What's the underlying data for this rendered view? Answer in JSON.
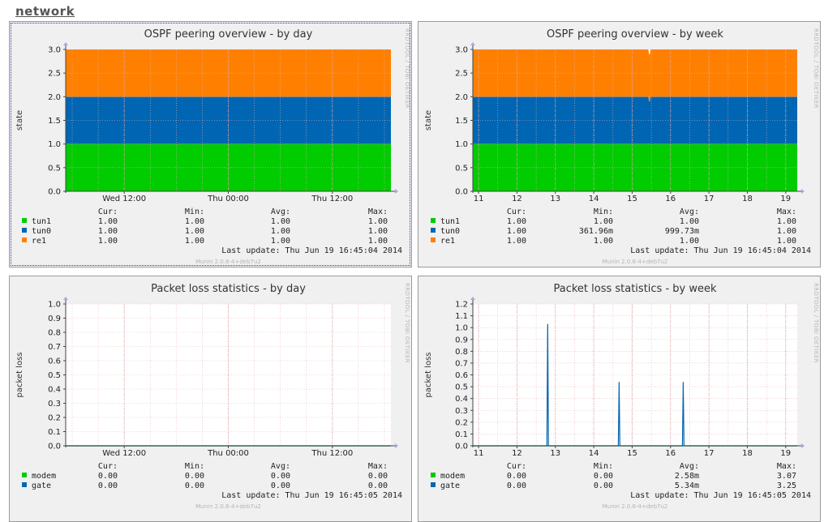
{
  "page": {
    "section_title": "network"
  },
  "chart_data": [
    {
      "id": "ospf-day",
      "type": "area",
      "title": "OSPF peering overview - by day",
      "ylabel": "state",
      "ylim": [
        0,
        3
      ],
      "yticks": [
        "0.0",
        "0.5",
        "1.0",
        "1.5",
        "2.0",
        "2.5",
        "3.0"
      ],
      "xlim": [
        0,
        100
      ],
      "xticks": [
        {
          "x": 18,
          "label": "Wed 12:00"
        },
        {
          "x": 50,
          "label": "Thu 00:00"
        },
        {
          "x": 82,
          "label": "Thu 12:00"
        }
      ],
      "xgrid": [
        2,
        10,
        18,
        26,
        34,
        42,
        50,
        58,
        66,
        74,
        82,
        90,
        98
      ],
      "ygrid": [
        0.5,
        1.0,
        1.5,
        2.0,
        2.5,
        3.0
      ],
      "stacked": true,
      "series": [
        {
          "name": "tun1",
          "color": "#00cc00",
          "x": [
            0,
            100
          ],
          "values": [
            1,
            1
          ]
        },
        {
          "name": "tun0",
          "color": "#0066b3",
          "x": [
            0,
            100
          ],
          "values": [
            1,
            1
          ]
        },
        {
          "name": "re1",
          "color": "#ff8000",
          "x": [
            0,
            100
          ],
          "values": [
            1,
            1
          ]
        }
      ],
      "legend_headers": [
        "Cur:",
        "Min:",
        "Avg:",
        "Max:"
      ],
      "legend_rows": [
        {
          "name": "tun1",
          "color": "#00cc00",
          "cur": "1.00",
          "min": "1.00",
          "avg": "1.00",
          "max": "1.00"
        },
        {
          "name": "tun0",
          "color": "#0066b3",
          "cur": "1.00",
          "min": "1.00",
          "avg": "1.00",
          "max": "1.00"
        },
        {
          "name": "re1",
          "color": "#ff8000",
          "cur": "1.00",
          "min": "1.00",
          "avg": "1.00",
          "max": "1.00"
        }
      ],
      "last_update": "Last update:  Thu Jun 19 16:45:04 2014",
      "side_text": "RRDTOOL / TOBI OETIKER",
      "version": "Munin 2.0.6-4+deb7u2",
      "selected": true
    },
    {
      "id": "ospf-week",
      "type": "area",
      "title": "OSPF peering overview - by week",
      "ylabel": "state",
      "ylim": [
        0,
        3
      ],
      "yticks": [
        "0.0",
        "0.5",
        "1.0",
        "1.5",
        "2.0",
        "2.5",
        "3.0"
      ],
      "xlim": [
        10.85,
        19.3
      ],
      "xticks": [
        {
          "x": 11,
          "label": "11"
        },
        {
          "x": 12,
          "label": "12"
        },
        {
          "x": 13,
          "label": "13"
        },
        {
          "x": 14,
          "label": "14"
        },
        {
          "x": 15,
          "label": "15"
        },
        {
          "x": 16,
          "label": "16"
        },
        {
          "x": 17,
          "label": "17"
        },
        {
          "x": 18,
          "label": "18"
        },
        {
          "x": 19,
          "label": "19"
        }
      ],
      "xgrid": [
        11,
        11.5,
        12,
        12.5,
        13,
        13.5,
        14,
        14.5,
        15,
        15.5,
        16,
        16.5,
        17,
        17.5,
        18,
        18.5,
        19
      ],
      "ygrid": [
        0.5,
        1.0,
        1.5,
        2.0,
        2.5,
        3.0
      ],
      "stacked": true,
      "series": [
        {
          "name": "tun1",
          "color": "#00cc00",
          "x": [
            10.85,
            19.3
          ],
          "values": [
            1,
            1
          ]
        },
        {
          "name": "tun0",
          "color": "#0066b3",
          "x": [
            10.85,
            15.42,
            15.44,
            15.46,
            15.48,
            19.3
          ],
          "values": [
            1,
            1,
            0.9,
            0.9,
            1,
            1
          ]
        },
        {
          "name": "re1",
          "color": "#ff8000",
          "x": [
            10.85,
            19.3
          ],
          "values": [
            1,
            1
          ]
        }
      ],
      "legend_headers": [
        "Cur:",
        "Min:",
        "Avg:",
        "Max:"
      ],
      "legend_rows": [
        {
          "name": "tun1",
          "color": "#00cc00",
          "cur": "1.00",
          "min": "1.00",
          "avg": "1.00",
          "max": "1.00"
        },
        {
          "name": "tun0",
          "color": "#0066b3",
          "cur": "1.00",
          "min": "361.96m",
          "avg": "999.73m",
          "max": "1.00"
        },
        {
          "name": "re1",
          "color": "#ff8000",
          "cur": "1.00",
          "min": "1.00",
          "avg": "1.00",
          "max": "1.00"
        }
      ],
      "last_update": "Last update:  Thu Jun 19 16:45:04 2014",
      "side_text": "RRDTOOL / TOBI OETIKER",
      "version": "Munin 2.0.6-4+deb7u2",
      "selected": false
    },
    {
      "id": "loss-day",
      "type": "line",
      "title": "Packet loss statistics - by day",
      "ylabel": "packet loss",
      "ylim": [
        0,
        1.0
      ],
      "yticks": [
        "0.0",
        "0.1",
        "0.2",
        "0.3",
        "0.4",
        "0.5",
        "0.6",
        "0.7",
        "0.8",
        "0.9",
        "1.0"
      ],
      "xlim": [
        0,
        100
      ],
      "xticks": [
        {
          "x": 18,
          "label": "Wed 12:00"
        },
        {
          "x": 50,
          "label": "Thu 00:00"
        },
        {
          "x": 82,
          "label": "Thu 12:00"
        }
      ],
      "xgrid": [
        2,
        10,
        18,
        26,
        34,
        42,
        50,
        58,
        66,
        74,
        82,
        90,
        98
      ],
      "ygrid": [
        0.1,
        0.2,
        0.3,
        0.4,
        0.5,
        0.6,
        0.7,
        0.8,
        0.9,
        1.0
      ],
      "stacked": false,
      "series": [
        {
          "name": "modem",
          "color": "#00cc00",
          "x": [
            0,
            100
          ],
          "values": [
            0,
            0
          ]
        },
        {
          "name": "gate",
          "color": "#0066b3",
          "x": [
            0,
            100
          ],
          "values": [
            0,
            0
          ]
        }
      ],
      "legend_headers": [
        "Cur:",
        "Min:",
        "Avg:",
        "Max:"
      ],
      "legend_rows": [
        {
          "name": "modem",
          "color": "#00cc00",
          "cur": "0.00",
          "min": "0.00",
          "avg": "0.00",
          "max": "0.00"
        },
        {
          "name": "gate",
          "color": "#0066b3",
          "cur": "0.00",
          "min": "0.00",
          "avg": "0.00",
          "max": "0.00"
        }
      ],
      "last_update": "Last update:  Thu Jun 19 16:45:05 2014",
      "side_text": "RRDTOOL / TOBI OETIKER",
      "version": "Munin 2.0.6-4+deb7u2",
      "selected": false
    },
    {
      "id": "loss-week",
      "type": "line",
      "title": "Packet loss statistics - by week",
      "ylabel": "packet loss",
      "ylim": [
        0,
        1.2
      ],
      "yticks": [
        "0.0",
        "0.1",
        "0.2",
        "0.3",
        "0.4",
        "0.5",
        "0.6",
        "0.7",
        "0.8",
        "0.9",
        "1.0",
        "1.1",
        "1.2"
      ],
      "xlim": [
        10.85,
        19.3
      ],
      "xticks": [
        {
          "x": 11,
          "label": "11"
        },
        {
          "x": 12,
          "label": "12"
        },
        {
          "x": 13,
          "label": "13"
        },
        {
          "x": 14,
          "label": "14"
        },
        {
          "x": 15,
          "label": "15"
        },
        {
          "x": 16,
          "label": "16"
        },
        {
          "x": 17,
          "label": "17"
        },
        {
          "x": 18,
          "label": "18"
        },
        {
          "x": 19,
          "label": "19"
        }
      ],
      "xgrid": [
        11,
        11.5,
        12,
        12.5,
        13,
        13.5,
        14,
        14.5,
        15,
        15.5,
        16,
        16.5,
        17,
        17.5,
        18,
        18.5,
        19
      ],
      "ygrid": [
        0.1,
        0.2,
        0.3,
        0.4,
        0.5,
        0.6,
        0.7,
        0.8,
        0.9,
        1.0,
        1.1,
        1.2
      ],
      "stacked": false,
      "series": [
        {
          "name": "modem",
          "color": "#00cc00",
          "x": [
            10.85,
            19.3
          ],
          "values": [
            0,
            0
          ]
        },
        {
          "name": "gate",
          "color": "#0066b3",
          "x": [
            10.85,
            12.78,
            12.8,
            12.82,
            14.64,
            14.66,
            14.68,
            16.31,
            16.33,
            16.35,
            19.3
          ],
          "values": [
            0,
            0,
            1.03,
            0,
            0,
            0.54,
            0,
            0,
            0.54,
            0,
            0
          ]
        }
      ],
      "legend_headers": [
        "Cur:",
        "Min:",
        "Avg:",
        "Max:"
      ],
      "legend_rows": [
        {
          "name": "modem",
          "color": "#00cc00",
          "cur": "0.00",
          "min": "0.00",
          "avg": "2.58m",
          "max": "3.07"
        },
        {
          "name": "gate",
          "color": "#0066b3",
          "cur": "0.00",
          "min": "0.00",
          "avg": "5.34m",
          "max": "3.25"
        }
      ],
      "last_update": "Last update:  Thu Jun 19 16:45:05 2014",
      "side_text": "RRDTOOL / TOBI OETIKER",
      "version": "Munin 2.0.6-4+deb7u2",
      "selected": false
    }
  ]
}
